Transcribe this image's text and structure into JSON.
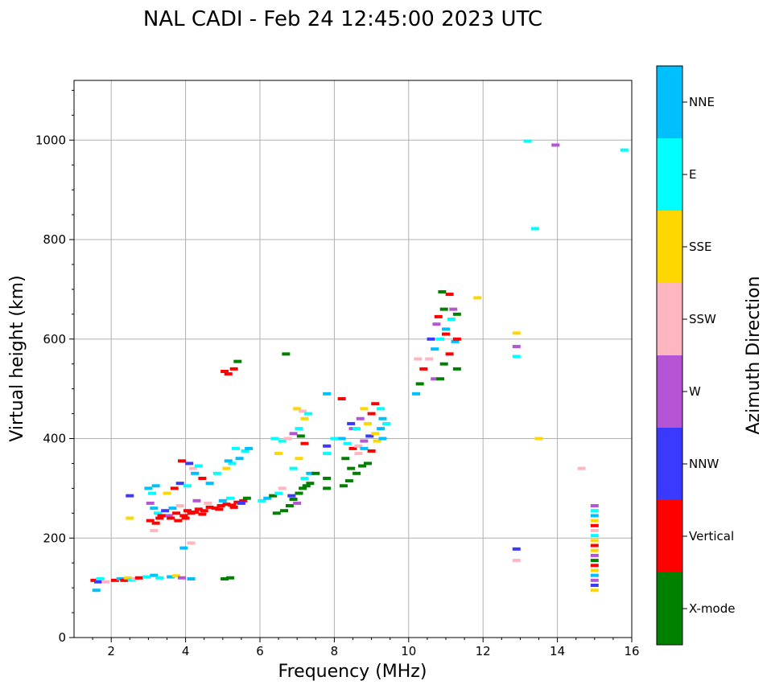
{
  "chart_data": {
    "type": "scatter",
    "title": "NAL CADI - Feb 24 12:45:00 2023 UTC",
    "xlabel": "Frequency (MHz)",
    "ylabel": "Virtual height (km)",
    "xlim": [
      1,
      16
    ],
    "ylim": [
      0,
      1120
    ],
    "xticks": [
      2,
      4,
      6,
      8,
      10,
      12,
      14,
      16
    ],
    "yticks": [
      0,
      200,
      400,
      600,
      800,
      1000
    ],
    "grid": true,
    "colorbar": {
      "label": "Azimuth Direction",
      "categories": [
        {
          "name": "X-mode",
          "color": "#008000"
        },
        {
          "name": "Vertical",
          "color": "#ff0000"
        },
        {
          "name": "NNW",
          "color": "#3a3aff"
        },
        {
          "name": "W",
          "color": "#b555d6"
        },
        {
          "name": "SSW",
          "color": "#ffb6c1"
        },
        {
          "name": "SSE",
          "color": "#ffd700"
        },
        {
          "name": "E",
          "color": "#00ffff"
        },
        {
          "name": "NNE",
          "color": "#00bfff"
        }
      ]
    },
    "points": [
      [
        1.55,
        115,
        "Vertical"
      ],
      [
        1.65,
        112,
        "NNW"
      ],
      [
        1.6,
        95,
        "NNE"
      ],
      [
        1.7,
        118,
        "E"
      ],
      [
        1.85,
        112,
        "SSW"
      ],
      [
        2.1,
        115,
        "Vertical"
      ],
      [
        2.25,
        118,
        "NNE"
      ],
      [
        2.35,
        115,
        "Vertical"
      ],
      [
        2.45,
        120,
        "SSE"
      ],
      [
        2.55,
        116,
        "E"
      ],
      [
        2.65,
        118,
        "SSW"
      ],
      [
        2.75,
        120,
        "Vertical"
      ],
      [
        2.95,
        122,
        "E"
      ],
      [
        3.15,
        125,
        "NNE"
      ],
      [
        3.3,
        120,
        "E"
      ],
      [
        3.6,
        122,
        "NNE"
      ],
      [
        3.75,
        124,
        "SSE"
      ],
      [
        3.9,
        120,
        "W"
      ],
      [
        4.15,
        118,
        "NNE"
      ],
      [
        5.05,
        118,
        "X-mode"
      ],
      [
        5.2,
        120,
        "X-mode"
      ],
      [
        3.0,
        300,
        "NNE"
      ],
      [
        3.1,
        290,
        "E"
      ],
      [
        3.2,
        305,
        "NNE"
      ],
      [
        2.5,
        285,
        "NNW"
      ],
      [
        3.05,
        270,
        "W"
      ],
      [
        3.15,
        260,
        "NNE"
      ],
      [
        3.25,
        250,
        "E"
      ],
      [
        3.3,
        240,
        "Vertical"
      ],
      [
        3.45,
        255,
        "NNW"
      ],
      [
        3.55,
        245,
        "W"
      ],
      [
        3.65,
        260,
        "NNE"
      ],
      [
        3.75,
        250,
        "Vertical"
      ],
      [
        3.85,
        265,
        "SSW"
      ],
      [
        3.95,
        245,
        "Vertical"
      ],
      [
        4.05,
        255,
        "Vertical"
      ],
      [
        4.15,
        250,
        "Vertical"
      ],
      [
        4.25,
        252,
        "Vertical"
      ],
      [
        4.35,
        258,
        "Vertical"
      ],
      [
        4.5,
        255,
        "Vertical"
      ],
      [
        4.65,
        262,
        "Vertical"
      ],
      [
        4.8,
        260,
        "Vertical"
      ],
      [
        4.95,
        265,
        "Vertical"
      ],
      [
        5.1,
        268,
        "Vertical"
      ],
      [
        5.25,
        266,
        "Vertical"
      ],
      [
        5.4,
        272,
        "Vertical"
      ],
      [
        5.55,
        275,
        "Vertical"
      ],
      [
        5.65,
        280,
        "X-mode"
      ],
      [
        3.05,
        235,
        "Vertical"
      ],
      [
        3.2,
        230,
        "Vertical"
      ],
      [
        3.35,
        245,
        "Vertical"
      ],
      [
        3.6,
        240,
        "Vertical"
      ],
      [
        3.8,
        235,
        "Vertical"
      ],
      [
        4.0,
        240,
        "Vertical"
      ],
      [
        4.45,
        248,
        "Vertical"
      ],
      [
        4.9,
        258,
        "Vertical"
      ],
      [
        5.3,
        262,
        "Vertical"
      ],
      [
        5.5,
        270,
        "NNW"
      ],
      [
        5.2,
        280,
        "E"
      ],
      [
        5.0,
        275,
        "NNE"
      ],
      [
        4.6,
        270,
        "SSW"
      ],
      [
        4.3,
        275,
        "W"
      ],
      [
        3.5,
        290,
        "SSE"
      ],
      [
        3.7,
        300,
        "Vertical"
      ],
      [
        3.85,
        310,
        "NNW"
      ],
      [
        4.05,
        305,
        "E"
      ],
      [
        4.25,
        330,
        "NNE"
      ],
      [
        4.45,
        320,
        "Vertical"
      ],
      [
        4.65,
        310,
        "NNE"
      ],
      [
        4.85,
        330,
        "E"
      ],
      [
        5.1,
        340,
        "SSE"
      ],
      [
        5.25,
        350,
        "E"
      ],
      [
        5.45,
        360,
        "NNE"
      ],
      [
        5.6,
        375,
        "E"
      ],
      [
        5.7,
        380,
        "NNE"
      ],
      [
        5.35,
        380,
        "E"
      ],
      [
        5.15,
        355,
        "NNE"
      ],
      [
        3.9,
        355,
        "Vertical"
      ],
      [
        4.1,
        350,
        "NNW"
      ],
      [
        4.2,
        340,
        "SSW"
      ],
      [
        4.35,
        345,
        "E"
      ],
      [
        3.95,
        180,
        "NNE"
      ],
      [
        4.15,
        190,
        "SSW"
      ],
      [
        3.15,
        215,
        "SSW"
      ],
      [
        2.5,
        240,
        "SSE"
      ],
      [
        6.05,
        275,
        "E"
      ],
      [
        6.2,
        280,
        "NNE"
      ],
      [
        6.35,
        285,
        "X-mode"
      ],
      [
        6.5,
        290,
        "E"
      ],
      [
        6.45,
        250,
        "X-mode"
      ],
      [
        6.65,
        255,
        "X-mode"
      ],
      [
        6.8,
        265,
        "X-mode"
      ],
      [
        6.9,
        278,
        "X-mode"
      ],
      [
        7.05,
        290,
        "X-mode"
      ],
      [
        7.15,
        300,
        "X-mode"
      ],
      [
        7.25,
        305,
        "X-mode"
      ],
      [
        7.35,
        310,
        "X-mode"
      ],
      [
        7.0,
        270,
        "W"
      ],
      [
        6.85,
        285,
        "NNW"
      ],
      [
        6.6,
        300,
        "SSW"
      ],
      [
        7.2,
        320,
        "E"
      ],
      [
        7.35,
        330,
        "NNE"
      ],
      [
        7.5,
        330,
        "X-mode"
      ],
      [
        6.9,
        340,
        "E"
      ],
      [
        7.05,
        360,
        "SSE"
      ],
      [
        6.5,
        370,
        "SSE"
      ],
      [
        6.6,
        395,
        "E"
      ],
      [
        6.75,
        400,
        "SSW"
      ],
      [
        6.9,
        410,
        "W"
      ],
      [
        7.05,
        420,
        "E"
      ],
      [
        7.2,
        440,
        "SSE"
      ],
      [
        7.0,
        460,
        "SSE"
      ],
      [
        7.15,
        455,
        "SSW"
      ],
      [
        7.3,
        450,
        "E"
      ],
      [
        7.2,
        390,
        "Vertical"
      ],
      [
        7.1,
        405,
        "X-mode"
      ],
      [
        6.7,
        570,
        "X-mode"
      ],
      [
        5.15,
        530,
        "Vertical"
      ],
      [
        5.3,
        540,
        "Vertical"
      ],
      [
        5.4,
        555,
        "X-mode"
      ],
      [
        5.05,
        535,
        "Vertical"
      ],
      [
        6.4,
        400,
        "E"
      ],
      [
        7.8,
        385,
        "NNW"
      ],
      [
        7.8,
        370,
        "E"
      ],
      [
        7.8,
        300,
        "X-mode"
      ],
      [
        7.8,
        490,
        "NNE"
      ],
      [
        7.8,
        320,
        "X-mode"
      ],
      [
        8.2,
        400,
        "NNE"
      ],
      [
        8.35,
        390,
        "E"
      ],
      [
        8.5,
        380,
        "Vertical"
      ],
      [
        8.65,
        385,
        "SSW"
      ],
      [
        8.8,
        395,
        "W"
      ],
      [
        8.95,
        405,
        "NNW"
      ],
      [
        9.1,
        410,
        "SSE"
      ],
      [
        9.25,
        420,
        "NNE"
      ],
      [
        9.4,
        430,
        "E"
      ],
      [
        8.3,
        360,
        "X-mode"
      ],
      [
        8.45,
        340,
        "X-mode"
      ],
      [
        8.6,
        330,
        "X-mode"
      ],
      [
        8.75,
        345,
        "X-mode"
      ],
      [
        8.9,
        350,
        "X-mode"
      ],
      [
        8.4,
        315,
        "X-mode"
      ],
      [
        8.25,
        305,
        "X-mode"
      ],
      [
        8.5,
        420,
        "W"
      ],
      [
        8.7,
        440,
        "W"
      ],
      [
        8.9,
        430,
        "SSE"
      ],
      [
        9.0,
        450,
        "Vertical"
      ],
      [
        9.1,
        470,
        "Vertical"
      ],
      [
        9.25,
        460,
        "E"
      ],
      [
        9.3,
        440,
        "NNE"
      ],
      [
        8.8,
        460,
        "SSE"
      ],
      [
        8.6,
        420,
        "E"
      ],
      [
        8.2,
        480,
        "Vertical"
      ],
      [
        8.45,
        430,
        "NNW"
      ],
      [
        8.65,
        370,
        "SSW"
      ],
      [
        8.8,
        380,
        "NNE"
      ],
      [
        9.0,
        375,
        "Vertical"
      ],
      [
        9.15,
        395,
        "SSE"
      ],
      [
        9.3,
        400,
        "NNE"
      ],
      [
        8.0,
        400,
        "E"
      ],
      [
        10.2,
        490,
        "NNE"
      ],
      [
        10.3,
        510,
        "X-mode"
      ],
      [
        10.4,
        540,
        "Vertical"
      ],
      [
        10.55,
        560,
        "SSW"
      ],
      [
        10.7,
        580,
        "NNE"
      ],
      [
        10.85,
        600,
        "E"
      ],
      [
        11.0,
        620,
        "NNE"
      ],
      [
        11.15,
        640,
        "E"
      ],
      [
        11.3,
        650,
        "X-mode"
      ],
      [
        10.7,
        520,
        "W"
      ],
      [
        10.85,
        520,
        "X-mode"
      ],
      [
        10.95,
        550,
        "X-mode"
      ],
      [
        11.1,
        570,
        "Vertical"
      ],
      [
        11.25,
        595,
        "NNE"
      ],
      [
        10.8,
        645,
        "Vertical"
      ],
      [
        10.95,
        660,
        "X-mode"
      ],
      [
        11.1,
        690,
        "Vertical"
      ],
      [
        10.9,
        695,
        "X-mode"
      ],
      [
        11.3,
        540,
        "X-mode"
      ],
      [
        11.3,
        600,
        "Vertical"
      ],
      [
        11.0,
        610,
        "Vertical"
      ],
      [
        10.75,
        630,
        "W"
      ],
      [
        10.6,
        600,
        "NNW"
      ],
      [
        11.2,
        660,
        "W"
      ],
      [
        11.85,
        683,
        "SSE"
      ],
      [
        10.25,
        560,
        "SSW"
      ],
      [
        12.9,
        612,
        "SSE"
      ],
      [
        12.9,
        585,
        "W"
      ],
      [
        12.9,
        565,
        "E"
      ],
      [
        13.5,
        400,
        "SSE"
      ],
      [
        13.4,
        822,
        "E"
      ],
      [
        13.2,
        998,
        "E"
      ],
      [
        13.95,
        990,
        "W"
      ],
      [
        15.8,
        980,
        "E"
      ],
      [
        14.65,
        340,
        "SSW"
      ],
      [
        12.9,
        178,
        "NNW"
      ],
      [
        12.9,
        155,
        "SSW"
      ],
      [
        15.0,
        265,
        "W"
      ],
      [
        15.0,
        255,
        "E"
      ],
      [
        15.0,
        245,
        "NNE"
      ],
      [
        15.0,
        235,
        "SSE"
      ],
      [
        15.0,
        225,
        "Vertical"
      ],
      [
        15.0,
        215,
        "SSW"
      ],
      [
        15.0,
        205,
        "E"
      ],
      [
        15.0,
        195,
        "SSE"
      ],
      [
        15.0,
        185,
        "Vertical"
      ],
      [
        15.0,
        175,
        "SSE"
      ],
      [
        15.0,
        165,
        "W"
      ],
      [
        15.0,
        155,
        "X-mode"
      ],
      [
        15.0,
        145,
        "Vertical"
      ],
      [
        15.0,
        135,
        "SSE"
      ],
      [
        15.0,
        125,
        "NNE"
      ],
      [
        15.0,
        115,
        "W"
      ],
      [
        15.0,
        105,
        "NNW"
      ],
      [
        15.0,
        95,
        "SSE"
      ]
    ]
  }
}
